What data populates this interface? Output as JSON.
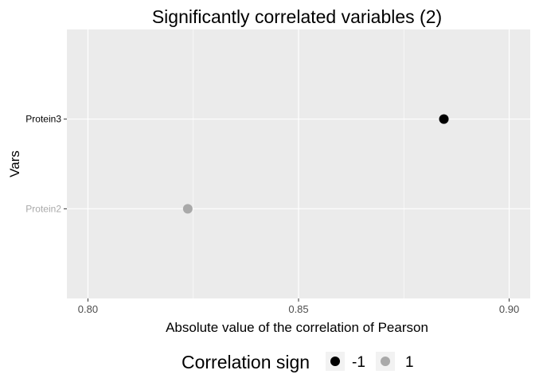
{
  "chart_data": {
    "type": "scatter",
    "title": "Significantly correlated variables (2)",
    "xlabel": "Absolute value of the correlation of Pearson",
    "ylabel": "Vars",
    "xlim": [
      0.795,
      0.905
    ],
    "x_ticks": [
      0.8,
      0.85,
      0.9
    ],
    "x_tick_labels": [
      "0.80",
      "0.85",
      "0.90"
    ],
    "categories": [
      "Protein2",
      "Protein3"
    ],
    "category_colors": {
      "Protein2": "#a9a9a9",
      "Protein3": "#000000"
    },
    "points": [
      {
        "var": "Protein3",
        "x": 0.8845,
        "sign": "-1"
      },
      {
        "var": "Protein2",
        "x": 0.8237,
        "sign": "1"
      }
    ],
    "legend": {
      "title": "Correlation sign",
      "position": "bottom",
      "entries": [
        {
          "label": "-1",
          "color": "#000000"
        },
        {
          "label": "1",
          "color": "#a9a9a9"
        }
      ]
    },
    "grid": true,
    "panel_color": "#ebebeb",
    "grid_color": "#ffffff"
  }
}
